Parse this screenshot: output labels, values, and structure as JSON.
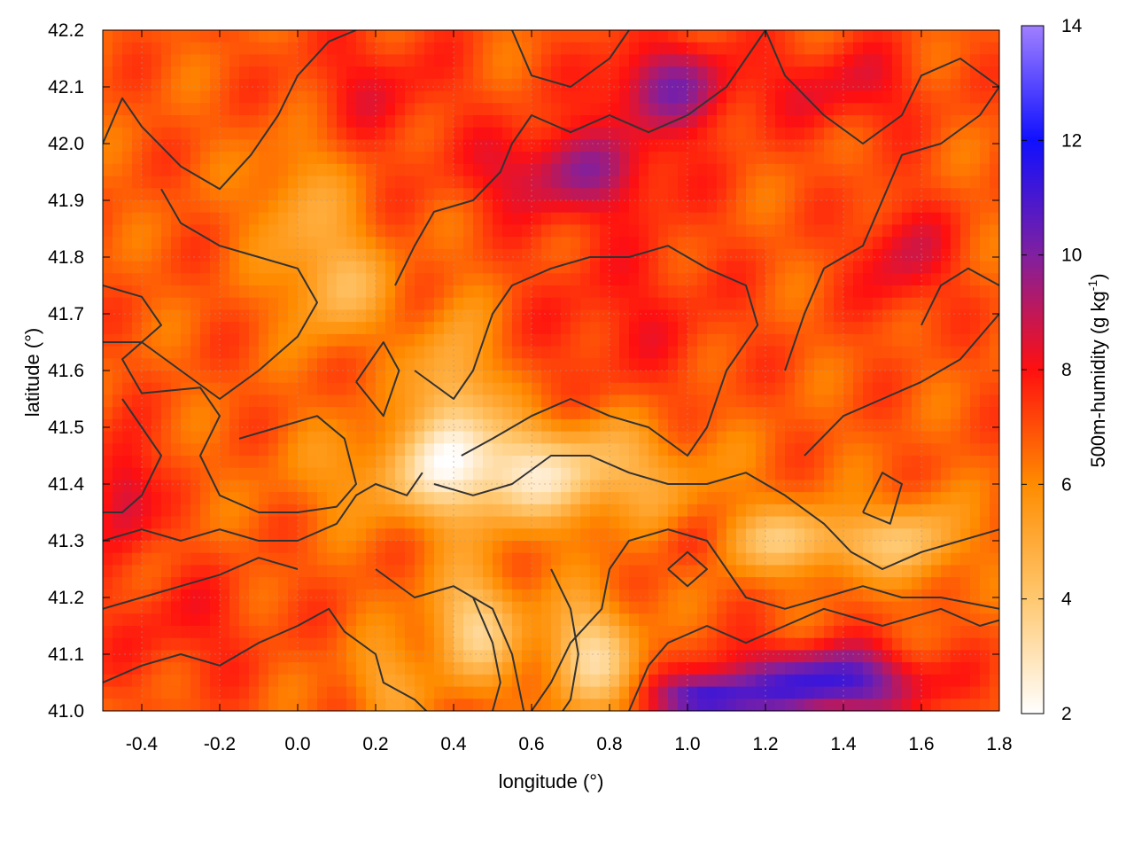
{
  "chart_data": {
    "type": "heatmap",
    "title": "",
    "xlabel": "longitude (°)",
    "ylabel": "latitude (°)",
    "colorbar_label": "500m-humidity (g kg",
    "colorbar_label_sup": "-1",
    "colorbar_label_close": ")",
    "xlim": [
      -0.5,
      1.8
    ],
    "ylim": [
      41.0,
      42.2
    ],
    "x_ticks": [
      "-0.4",
      "-0.2",
      "0.0",
      "0.2",
      "0.4",
      "0.6",
      "0.8",
      "1.0",
      "1.2",
      "1.4",
      "1.6",
      "1.8"
    ],
    "x_tick_values": [
      -0.4,
      -0.2,
      0.0,
      0.2,
      0.4,
      0.6,
      0.8,
      1.0,
      1.2,
      1.4,
      1.6,
      1.8
    ],
    "y_ticks": [
      "41.0",
      "41.1",
      "41.2",
      "41.3",
      "41.4",
      "41.5",
      "41.6",
      "41.7",
      "41.8",
      "41.9",
      "42.0",
      "42.1",
      "42.2"
    ],
    "y_tick_values": [
      41.0,
      41.1,
      41.2,
      41.3,
      41.4,
      41.5,
      41.6,
      41.7,
      41.8,
      41.9,
      42.0,
      42.1,
      42.2
    ],
    "colorbar_range": [
      2,
      14
    ],
    "colorbar_ticks": [
      "2",
      "4",
      "6",
      "8",
      "10",
      "12",
      "14"
    ],
    "colorbar_tick_values": [
      2,
      4,
      6,
      8,
      10,
      12,
      14
    ],
    "colormap": [
      {
        "value": 2,
        "color": "#ffffff"
      },
      {
        "value": 4,
        "color": "#ffc870"
      },
      {
        "value": 6,
        "color": "#ff8c00"
      },
      {
        "value": 8,
        "color": "#ff1010"
      },
      {
        "value": 10,
        "color": "#8020a0"
      },
      {
        "value": 12,
        "color": "#1010ff"
      },
      {
        "value": 14,
        "color": "#a080ff"
      }
    ],
    "grid": true,
    "contour_color": "#333333",
    "humidity_field": {
      "base": 6.8,
      "features": [
        {
          "lon": 0.55,
          "lat": 41.42,
          "amp": -3.8,
          "rlon": 0.4,
          "rlat": 0.09
        },
        {
          "lon": 0.4,
          "lat": 41.55,
          "amp": -2.6,
          "rlon": 0.1,
          "rlat": 0.15
        },
        {
          "lon": 0.1,
          "lat": 41.75,
          "amp": -2.2,
          "rlon": 0.12,
          "rlat": 0.1
        },
        {
          "lon": 0.0,
          "lat": 41.9,
          "amp": -1.5,
          "rlon": 0.12,
          "rlat": 0.12
        },
        {
          "lon": 0.45,
          "lat": 41.15,
          "amp": -3.0,
          "rlon": 0.12,
          "rlat": 0.1
        },
        {
          "lon": 0.75,
          "lat": 41.1,
          "amp": -3.2,
          "rlon": 0.12,
          "rlat": 0.1
        },
        {
          "lon": 1.3,
          "lat": 41.3,
          "amp": -2.6,
          "rlon": 0.25,
          "rlat": 0.06
        },
        {
          "lon": 1.6,
          "lat": 41.3,
          "amp": -1.8,
          "rlon": 0.12,
          "rlat": 0.08
        },
        {
          "lon": 0.22,
          "lat": 41.05,
          "amp": -1.5,
          "rlon": 0.1,
          "rlat": 0.08
        },
        {
          "lon": 0.7,
          "lat": 41.95,
          "amp": 2.5,
          "rlon": 0.25,
          "rlat": 0.08
        },
        {
          "lon": 0.95,
          "lat": 42.1,
          "amp": 2.8,
          "rlon": 0.18,
          "rlat": 0.08
        },
        {
          "lon": 1.4,
          "lat": 42.1,
          "amp": 1.5,
          "rlon": 0.2,
          "rlat": 0.08
        },
        {
          "lon": 0.2,
          "lat": 42.1,
          "amp": 1.2,
          "rlon": 0.2,
          "rlat": 0.1
        },
        {
          "lon": 1.35,
          "lat": 41.05,
          "amp": 4.5,
          "rlon": 0.25,
          "rlat": 0.06
        },
        {
          "lon": 1.05,
          "lat": 41.02,
          "amp": 4.2,
          "rlon": 0.12,
          "rlat": 0.04
        },
        {
          "lon": -0.45,
          "lat": 41.38,
          "amp": 2.2,
          "rlon": 0.08,
          "rlat": 0.1
        },
        {
          "lon": 1.0,
          "lat": 41.3,
          "amp": 1.2,
          "rlon": 0.08,
          "rlat": 0.05
        },
        {
          "lon": 0.85,
          "lat": 41.7,
          "amp": 1.0,
          "rlon": 0.25,
          "rlat": 0.15
        },
        {
          "lon": 1.55,
          "lat": 41.8,
          "amp": 1.8,
          "rlon": 0.12,
          "rlat": 0.1
        },
        {
          "lon": -0.3,
          "lat": 41.15,
          "amp": 1.0,
          "rlon": 0.2,
          "rlat": 0.1
        }
      ]
    },
    "contour_lines": [
      [
        [
          -0.5,
          42.0
        ],
        [
          -0.45,
          42.08
        ],
        [
          -0.4,
          42.03
        ],
        [
          -0.3,
          41.96
        ],
        [
          -0.2,
          41.92
        ],
        [
          -0.12,
          41.98
        ],
        [
          -0.05,
          42.05
        ],
        [
          0.0,
          42.12
        ],
        [
          0.08,
          42.18
        ],
        [
          0.15,
          42.2
        ]
      ],
      [
        [
          -0.5,
          41.75
        ],
        [
          -0.4,
          41.73
        ],
        [
          -0.35,
          41.68
        ],
        [
          -0.45,
          41.62
        ],
        [
          -0.4,
          41.56
        ],
        [
          -0.25,
          41.57
        ],
        [
          -0.2,
          41.52
        ],
        [
          -0.25,
          41.45
        ],
        [
          -0.2,
          41.38
        ],
        [
          -0.1,
          41.35
        ],
        [
          0.0,
          41.35
        ],
        [
          0.1,
          41.36
        ],
        [
          0.15,
          41.4
        ],
        [
          0.12,
          41.48
        ],
        [
          0.05,
          41.52
        ],
        [
          -0.05,
          41.5
        ],
        [
          -0.15,
          41.48
        ]
      ],
      [
        [
          -0.5,
          41.65
        ],
        [
          -0.4,
          41.65
        ],
        [
          -0.3,
          41.6
        ],
        [
          -0.2,
          41.55
        ],
        [
          -0.1,
          41.6
        ],
        [
          0.0,
          41.66
        ],
        [
          0.05,
          41.72
        ],
        [
          0.0,
          41.78
        ],
        [
          -0.1,
          41.8
        ],
        [
          -0.2,
          41.82
        ],
        [
          -0.3,
          41.86
        ],
        [
          -0.35,
          41.92
        ]
      ],
      [
        [
          -0.5,
          41.3
        ],
        [
          -0.4,
          41.32
        ],
        [
          -0.3,
          41.3
        ],
        [
          -0.2,
          41.32
        ],
        [
          -0.1,
          41.3
        ],
        [
          0.0,
          41.3
        ],
        [
          0.1,
          41.33
        ],
        [
          0.15,
          41.38
        ],
        [
          0.2,
          41.4
        ],
        [
          0.28,
          41.38
        ],
        [
          0.32,
          41.42
        ]
      ],
      [
        [
          -0.5,
          41.05
        ],
        [
          -0.4,
          41.08
        ],
        [
          -0.3,
          41.1
        ],
        [
          -0.2,
          41.08
        ],
        [
          -0.1,
          41.12
        ],
        [
          0.0,
          41.15
        ],
        [
          0.08,
          41.18
        ],
        [
          0.12,
          41.14
        ],
        [
          0.2,
          41.1
        ],
        [
          0.22,
          41.05
        ],
        [
          0.3,
          41.02
        ],
        [
          0.33,
          41.0
        ]
      ],
      [
        [
          -0.5,
          41.18
        ],
        [
          -0.4,
          41.2
        ],
        [
          -0.3,
          41.22
        ],
        [
          -0.2,
          41.24
        ],
        [
          -0.1,
          41.27
        ],
        [
          0.0,
          41.25
        ]
      ],
      [
        [
          0.25,
          41.75
        ],
        [
          0.3,
          41.82
        ],
        [
          0.35,
          41.88
        ],
        [
          0.45,
          41.9
        ],
        [
          0.52,
          41.95
        ],
        [
          0.55,
          42.0
        ],
        [
          0.6,
          42.05
        ],
        [
          0.7,
          42.02
        ],
        [
          0.8,
          42.05
        ],
        [
          0.9,
          42.02
        ],
        [
          1.0,
          42.05
        ],
        [
          1.1,
          42.1
        ],
        [
          1.15,
          42.15
        ],
        [
          1.2,
          42.2
        ]
      ],
      [
        [
          0.3,
          41.6
        ],
        [
          0.4,
          41.55
        ],
        [
          0.45,
          41.6
        ],
        [
          0.5,
          41.7
        ],
        [
          0.55,
          41.75
        ],
        [
          0.65,
          41.78
        ],
        [
          0.75,
          41.8
        ],
        [
          0.85,
          41.8
        ],
        [
          0.95,
          41.82
        ],
        [
          1.05,
          41.78
        ],
        [
          1.15,
          41.75
        ],
        [
          1.18,
          41.68
        ],
        [
          1.1,
          41.6
        ],
        [
          1.05,
          41.5
        ],
        [
          1.0,
          41.45
        ],
        [
          0.9,
          41.5
        ],
        [
          0.8,
          41.52
        ],
        [
          0.7,
          41.55
        ],
        [
          0.6,
          41.52
        ],
        [
          0.5,
          41.48
        ],
        [
          0.42,
          41.45
        ]
      ],
      [
        [
          0.35,
          41.4
        ],
        [
          0.45,
          41.38
        ],
        [
          0.55,
          41.4
        ],
        [
          0.65,
          41.45
        ],
        [
          0.75,
          41.45
        ],
        [
          0.85,
          41.42
        ],
        [
          0.95,
          41.4
        ],
        [
          1.05,
          41.4
        ],
        [
          1.15,
          41.42
        ],
        [
          1.25,
          41.38
        ],
        [
          1.35,
          41.33
        ],
        [
          1.42,
          41.28
        ],
        [
          1.5,
          41.25
        ],
        [
          1.6,
          41.28
        ],
        [
          1.7,
          41.3
        ],
        [
          1.8,
          41.32
        ]
      ],
      [
        [
          0.2,
          41.25
        ],
        [
          0.3,
          41.2
        ],
        [
          0.4,
          41.22
        ],
        [
          0.5,
          41.18
        ],
        [
          0.55,
          41.1
        ],
        [
          0.58,
          41.0
        ]
      ],
      [
        [
          0.6,
          41.0
        ],
        [
          0.65,
          41.05
        ],
        [
          0.7,
          41.12
        ],
        [
          0.78,
          41.18
        ],
        [
          0.8,
          41.25
        ],
        [
          0.85,
          41.3
        ],
        [
          0.95,
          41.32
        ],
        [
          1.05,
          41.3
        ],
        [
          1.1,
          41.25
        ],
        [
          1.15,
          41.2
        ],
        [
          1.25,
          41.18
        ],
        [
          1.35,
          41.2
        ],
        [
          1.45,
          41.22
        ],
        [
          1.55,
          41.2
        ],
        [
          1.65,
          41.2
        ],
        [
          1.8,
          41.18
        ]
      ],
      [
        [
          0.85,
          41.0
        ],
        [
          0.9,
          41.08
        ],
        [
          0.95,
          41.12
        ],
        [
          1.05,
          41.15
        ],
        [
          1.15,
          41.12
        ],
        [
          1.25,
          41.15
        ],
        [
          1.35,
          41.18
        ],
        [
          1.5,
          41.15
        ],
        [
          1.65,
          41.18
        ],
        [
          1.75,
          41.15
        ],
        [
          1.8,
          41.16
        ]
      ],
      [
        [
          1.25,
          41.6
        ],
        [
          1.3,
          41.7
        ],
        [
          1.35,
          41.78
        ],
        [
          1.45,
          41.82
        ],
        [
          1.5,
          41.9
        ],
        [
          1.55,
          41.98
        ],
        [
          1.65,
          42.0
        ],
        [
          1.75,
          42.05
        ],
        [
          1.8,
          42.1
        ]
      ],
      [
        [
          1.3,
          41.45
        ],
        [
          1.4,
          41.52
        ],
        [
          1.5,
          41.55
        ],
        [
          1.6,
          41.58
        ],
        [
          1.7,
          41.62
        ],
        [
          1.8,
          41.7
        ]
      ],
      [
        [
          1.2,
          42.2
        ],
        [
          1.25,
          42.12
        ],
        [
          1.35,
          42.05
        ],
        [
          1.45,
          42.0
        ],
        [
          1.55,
          42.05
        ],
        [
          1.6,
          42.12
        ],
        [
          1.7,
          42.15
        ],
        [
          1.8,
          42.1
        ]
      ],
      [
        [
          0.55,
          42.2
        ],
        [
          0.6,
          42.12
        ],
        [
          0.7,
          42.1
        ],
        [
          0.8,
          42.15
        ],
        [
          0.85,
          42.2
        ]
      ],
      [
        [
          0.45,
          41.2
        ],
        [
          0.5,
          41.12
        ],
        [
          0.52,
          41.05
        ],
        [
          0.5,
          41.0
        ]
      ],
      [
        [
          0.65,
          41.25
        ],
        [
          0.7,
          41.18
        ],
        [
          0.72,
          41.1
        ],
        [
          0.7,
          41.02
        ],
        [
          0.68,
          41.0
        ]
      ],
      [
        [
          0.95,
          41.25
        ],
        [
          1.0,
          41.28
        ],
        [
          1.05,
          41.25
        ],
        [
          1.0,
          41.22
        ],
        [
          0.95,
          41.25
        ]
      ],
      [
        [
          1.45,
          41.35
        ],
        [
          1.5,
          41.42
        ],
        [
          1.55,
          41.4
        ],
        [
          1.52,
          41.33
        ],
        [
          1.45,
          41.35
        ]
      ],
      [
        [
          0.15,
          41.58
        ],
        [
          0.22,
          41.65
        ],
        [
          0.26,
          41.6
        ],
        [
          0.22,
          41.52
        ],
        [
          0.15,
          41.58
        ]
      ],
      [
        [
          -0.45,
          41.55
        ],
        [
          -0.4,
          41.5
        ],
        [
          -0.35,
          41.45
        ],
        [
          -0.4,
          41.38
        ],
        [
          -0.45,
          41.35
        ],
        [
          -0.5,
          41.35
        ]
      ],
      [
        [
          1.6,
          41.68
        ],
        [
          1.65,
          41.75
        ],
        [
          1.72,
          41.78
        ],
        [
          1.8,
          41.75
        ]
      ]
    ]
  }
}
